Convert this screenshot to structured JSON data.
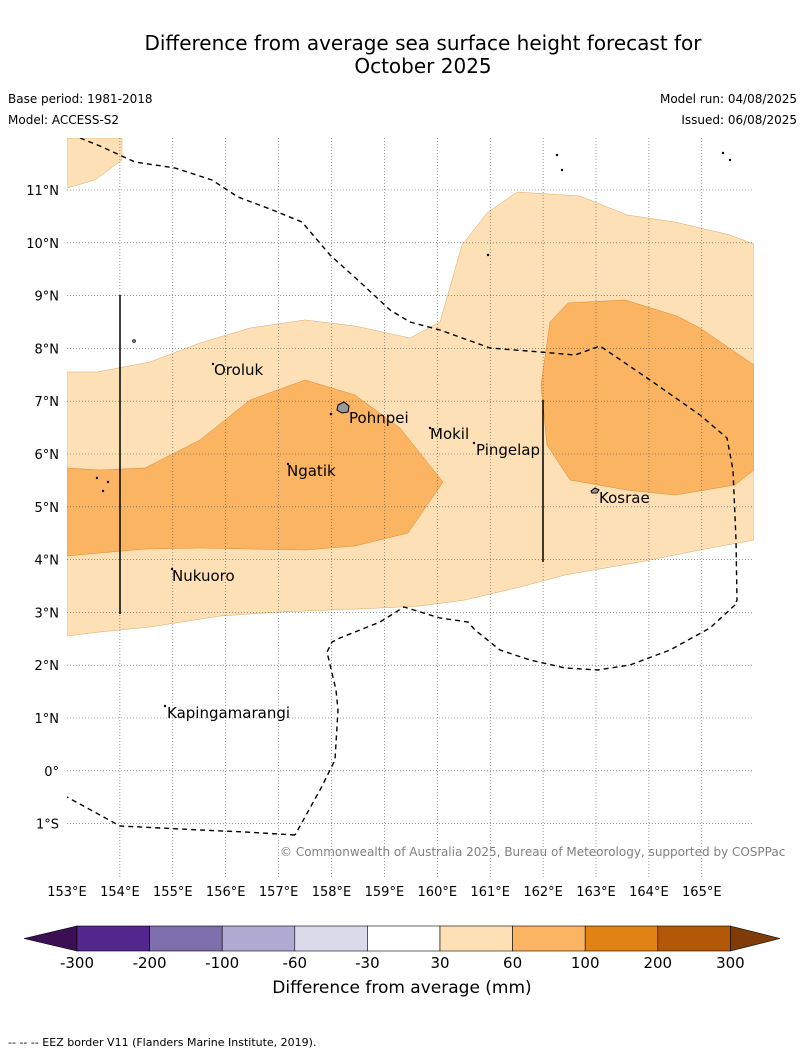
{
  "title_line1": "Difference from average sea surface height forecast for",
  "title_line2": "October 2025",
  "base_period": "Base period: 1981-2018",
  "model": "Model: ACCESS-S2",
  "model_run": "Model run: 04/08/2025",
  "issued": "Issued: 06/08/2025",
  "lon_ticks": [
    "153°E",
    "154°E",
    "155°E",
    "156°E",
    "157°E",
    "158°E",
    "159°E",
    "160°E",
    "161°E",
    "162°E",
    "163°E",
    "164°E",
    "165°E"
  ],
  "lat_ticks": [
    "11°N",
    "10°N",
    "9°N",
    "8°N",
    "7°N",
    "6°N",
    "5°N",
    "4°N",
    "3°N",
    "2°N",
    "1°N",
    "0°",
    "1°S"
  ],
  "place_labels": [
    "Oroluk",
    "Pohnpei",
    "Mokil",
    "Pingelap",
    "Ngatik",
    "Kosrae",
    "Nukuoro",
    "Kapingamarangi"
  ],
  "credit": "© Commonwealth of Australia 2025, Bureau of Meteorology, supported by COSPPac",
  "colorbar": {
    "tick_labels": [
      "-300",
      "-200",
      "-100",
      "-60",
      "-30",
      "30",
      "60",
      "100",
      "200",
      "300"
    ],
    "colors": [
      "#3b0f53",
      "#54278f",
      "#7e6eab",
      "#b0aad3",
      "#dadaeb",
      "#ffffff",
      "#fde0b5",
      "#fbb461",
      "#e08214",
      "#b35806",
      "#7f3b08"
    ],
    "label": "Difference from average (mm)"
  },
  "legend_footnote": "--  --  -- EEZ border V11 (Flanders Marine Institute, 2019)."
}
